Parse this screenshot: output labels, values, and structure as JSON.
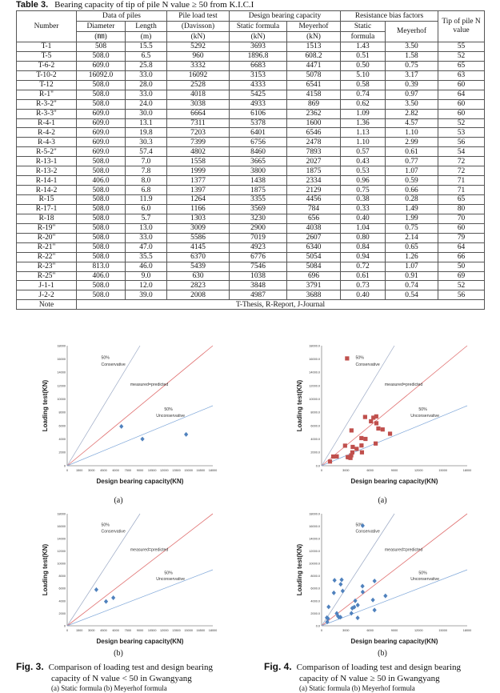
{
  "table": {
    "label": "Table 3.",
    "title": "Bearing capacity of tip of pile N value ≥ 50 from K.I.C.I",
    "headers": {
      "number": "Number",
      "data_of_piles": "Data of piles",
      "diameter": "Diameter",
      "diameter_unit": "(㎜)",
      "length": "Length",
      "length_unit": "(m)",
      "pile_load_test": "Pile load test",
      "davisson": "(Davisson)",
      "pile_unit": "(kN)",
      "design_bearing": "Design bearing capacity",
      "static_formula": "Static formula",
      "static_unit": "(kN)",
      "meyerhof": "Meyerhof",
      "meyerhof_unit": "(kN)",
      "resistance": "Resistance bias factors",
      "static_bias_1": "Static",
      "static_bias_2": "formula",
      "meyerhof_bias": "Meyerhof",
      "tip": "Tip of pile N",
      "tip_2": "value"
    },
    "rows": [
      [
        "T-1",
        "508",
        "15.5",
        "5292",
        "3693",
        "1513",
        "1.43",
        "3.50",
        "55"
      ],
      [
        "T-5",
        "508.0",
        "6.5",
        "960",
        "1896.8",
        "608.2",
        "0.51",
        "1.58",
        "52"
      ],
      [
        "T-6-2",
        "609.0",
        "25.8",
        "3332",
        "6683",
        "4471",
        "0.50",
        "0.75",
        "65"
      ],
      [
        "T-10-2",
        "16092.0",
        "33.0",
        "16092",
        "3153",
        "5078",
        "5.10",
        "3.17",
        "63"
      ],
      [
        "T-12",
        "508.0",
        "28.0",
        "2528",
        "4333",
        "6541",
        "0.58",
        "0.39",
        "60"
      ],
      [
        "R-1\"",
        "508.0",
        "33.0",
        "4018",
        "5425",
        "4158",
        "0.74",
        "0.97",
        "64"
      ],
      [
        "R-3-2\"",
        "508.0",
        "24.0",
        "3038",
        "4933",
        "869",
        "0.62",
        "3.50",
        "60"
      ],
      [
        "R-3-3\"",
        "609.0",
        "30.0",
        "6664",
        "6106",
        "2362",
        "1.09",
        "2.82",
        "60"
      ],
      [
        "R-4-1",
        "609.0",
        "13.1",
        "7311",
        "5378",
        "1600",
        "1.36",
        "4.57",
        "52"
      ],
      [
        "R-4-2",
        "609.0",
        "19.8",
        "7203",
        "6401",
        "6546",
        "1.13",
        "1.10",
        "53"
      ],
      [
        "R-4-3",
        "609.0",
        "30.3",
        "7399",
        "6756",
        "2478",
        "1.10",
        "2.99",
        "56"
      ],
      [
        "R-5-2\"",
        "609.0",
        "57.4",
        "4802",
        "8460",
        "7893",
        "0.57",
        "0.61",
        "54"
      ],
      [
        "R-13-1",
        "508.0",
        "7.0",
        "1558",
        "3665",
        "2027",
        "0.43",
        "0.77",
        "72"
      ],
      [
        "R-13-2",
        "508.0",
        "7.8",
        "1999",
        "3800",
        "1875",
        "0.53",
        "1.07",
        "72"
      ],
      [
        "R-14-1",
        "406.0",
        "8.0",
        "1377",
        "1438",
        "2334",
        "0.96",
        "0.59",
        "71"
      ],
      [
        "R-14-2",
        "508.0",
        "6.8",
        "1397",
        "1875",
        "2129",
        "0.75",
        "0.66",
        "71"
      ],
      [
        "R-15",
        "508.0",
        "11.9",
        "1264",
        "3355",
        "4456",
        "0.38",
        "0.28",
        "65"
      ],
      [
        "R-17-1",
        "508.0",
        "6.0",
        "1166",
        "3569",
        "784",
        "0.33",
        "1.49",
        "80"
      ],
      [
        "R-18",
        "508.0",
        "5.7",
        "1303",
        "3230",
        "656",
        "0.40",
        "1.99",
        "70"
      ],
      [
        "R-19\"",
        "508.0",
        "13.0",
        "3009",
        "2900",
        "4038",
        "1.04",
        "0.75",
        "60"
      ],
      [
        "R-20\"",
        "508.0",
        "33.0",
        "5586",
        "7019",
        "2607",
        "0.80",
        "2.14",
        "79"
      ],
      [
        "R-21\"",
        "508.0",
        "47.0",
        "4145",
        "4923",
        "6340",
        "0.84",
        "0.65",
        "64"
      ],
      [
        "R-22\"",
        "508.0",
        "35.5",
        "6370",
        "6776",
        "5054",
        "0.94",
        "1.26",
        "66"
      ],
      [
        "R-23\"",
        "813.0",
        "46.0",
        "5439",
        "7546",
        "5084",
        "0.72",
        "1.07",
        "50"
      ],
      [
        "R-25\"",
        "406.0",
        "9.0",
        "630",
        "1038",
        "696",
        "0.61",
        "0.91",
        "69"
      ],
      [
        "J-1-1",
        "508.0",
        "12.0",
        "2823",
        "3848",
        "3791",
        "0.73",
        "0.74",
        "52"
      ],
      [
        "J-2-2",
        "508.0",
        "39.0",
        "2008",
        "4987",
        "3688",
        "0.40",
        "0.54",
        "56"
      ]
    ],
    "note_label": "Note",
    "note_text": "T-Thesis, R-Report, J-Journal"
  },
  "chart_data": [
    {
      "type": "scatter",
      "id": "fig3a",
      "panel_label": "(a)",
      "xlabel": "Design bearing capacity(KN)",
      "ylabel": "Loading test(KN)",
      "xlim": [
        0,
        18000
      ],
      "ylim": [
        0,
        18000
      ],
      "xticks": [
        "0",
        "1500",
        "3000",
        "4500",
        "6000",
        "7500",
        "9000",
        "10500",
        "12000",
        "13500",
        "15000",
        "16500",
        "18000"
      ],
      "yticks": [
        "0",
        "2000",
        "4000",
        "6000",
        "8000",
        "10000",
        "12000",
        "14000",
        "16000",
        "18000"
      ],
      "annotations": [
        "50%",
        "Conservative",
        "measured=predicted",
        "50%",
        "Unconservative"
      ],
      "marker": "diamond",
      "color": "#4f81bd",
      "points": [
        [
          6700,
          5900
        ],
        [
          9300,
          4000
        ],
        [
          14700,
          4700
        ]
      ]
    },
    {
      "type": "scatter",
      "id": "fig3b",
      "panel_label": "(b)",
      "xlabel": "Design bearing capacity(KN)",
      "ylabel": "Loading test(KN)",
      "xlim": [
        0,
        18000
      ],
      "ylim": [
        0,
        18000
      ],
      "xticks": [
        "0",
        "1500",
        "3000",
        "4500",
        "6000",
        "7500",
        "9000",
        "10500",
        "12000",
        "13500",
        "15000",
        "16500",
        "18000"
      ],
      "yticks": [
        "0",
        "2000",
        "4000",
        "6000",
        "8000",
        "10000",
        "12000",
        "14000",
        "16000",
        "18000"
      ],
      "annotations": [
        "50%",
        "Conservative",
        "measured=predicted",
        "50%",
        "Unconservative"
      ],
      "marker": "diamond",
      "color": "#4f81bd",
      "points": [
        [
          3600,
          5800
        ],
        [
          4800,
          3900
        ],
        [
          5700,
          4500
        ]
      ]
    },
    {
      "type": "scatter",
      "id": "fig4a",
      "panel_label": "(a)",
      "xlabel": "Design bearing capacity(KN)",
      "ylabel": "Loading test(KN)",
      "xlim": [
        0,
        18000
      ],
      "ylim": [
        0,
        18000
      ],
      "xticks": [
        "0",
        "3000",
        "6000",
        "9000",
        "12000",
        "15000",
        "18000"
      ],
      "yticks": [
        "0.0",
        "2000.0",
        "4000.0",
        "6000.0",
        "8000.0",
        "10000.0",
        "12000.0",
        "14000.0",
        "16000.0",
        "18000.0"
      ],
      "annotations": [
        "50%",
        "Conservative",
        "measured=predicted",
        "50%",
        "Unconservative"
      ],
      "marker": "square",
      "color": "#c0504d",
      "points": [
        [
          3693,
          5292
        ],
        [
          6683,
          3332
        ],
        [
          3153,
          16092
        ],
        [
          4333,
          2528
        ],
        [
          5425,
          4018
        ],
        [
          4933,
          3038
        ],
        [
          6106,
          6664
        ],
        [
          5378,
          7311
        ],
        [
          6401,
          7203
        ],
        [
          6756,
          7399
        ],
        [
          8460,
          4802
        ],
        [
          3665,
          1558
        ],
        [
          3800,
          1999
        ],
        [
          1438,
          1377
        ],
        [
          1875,
          1397
        ],
        [
          3355,
          1264
        ],
        [
          3569,
          1166
        ],
        [
          3230,
          1303
        ],
        [
          2900,
          3009
        ],
        [
          7019,
          5586
        ],
        [
          4923,
          4145
        ],
        [
          6776,
          6370
        ],
        [
          7546,
          5439
        ],
        [
          1038,
          630
        ],
        [
          3848,
          2823
        ],
        [
          4987,
          2008
        ]
      ]
    },
    {
      "type": "scatter",
      "id": "fig4b",
      "panel_label": "(b)",
      "xlabel": "Design bearing capacity(KN)",
      "ylabel": "Loading test(KN)",
      "xlim": [
        0,
        18000
      ],
      "ylim": [
        0,
        18000
      ],
      "xticks": [
        "0",
        "3000",
        "6000",
        "9000",
        "12000",
        "15000",
        "18000"
      ],
      "yticks": [
        "0.0",
        "2000.0",
        "4000.0",
        "6000.0",
        "8000.0",
        "10000.0",
        "12000.0",
        "14000.0",
        "16000.0",
        "18000.0"
      ],
      "annotations": [
        "50%",
        "Conservative",
        "measured=predicted",
        "50%",
        "Unconservative"
      ],
      "marker": "diamond",
      "color": "#4f81bd",
      "points": [
        [
          1513,
          5292
        ],
        [
          4471,
          3332
        ],
        [
          5078,
          16092
        ],
        [
          6541,
          2528
        ],
        [
          4158,
          4018
        ],
        [
          869,
          3038
        ],
        [
          2362,
          6664
        ],
        [
          1600,
          7311
        ],
        [
          6546,
          7203
        ],
        [
          2478,
          7399
        ],
        [
          7893,
          4802
        ],
        [
          2027,
          1558
        ],
        [
          1875,
          1999
        ],
        [
          2334,
          1377
        ],
        [
          2129,
          1397
        ],
        [
          4456,
          1264
        ],
        [
          784,
          1166
        ],
        [
          656,
          1303
        ],
        [
          4038,
          3009
        ],
        [
          2607,
          5586
        ],
        [
          6340,
          4145
        ],
        [
          5054,
          6370
        ],
        [
          5084,
          5439
        ],
        [
          696,
          630
        ],
        [
          3791,
          2823
        ],
        [
          3688,
          2008
        ]
      ]
    }
  ],
  "fig3": {
    "label": "Fig. 3.",
    "line1": "Comparison of loading test and design bearing",
    "line2": "capacity of N value < 50 in Gwangyang",
    "line3": "(a) Static formula (b) Meyerhof formula"
  },
  "fig4": {
    "label": "Fig. 4.",
    "line1": "Comparison of loading test and design bearing",
    "line2": "capacity of N value ≥ 50 in Gwangyang",
    "line3": "(a) Static formula (b) Meyerhof formula"
  }
}
